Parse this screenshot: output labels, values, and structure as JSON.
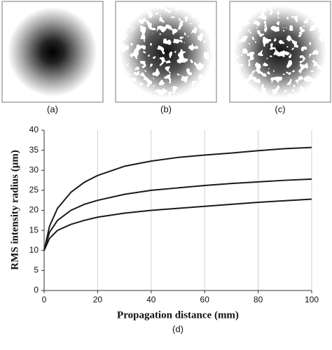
{
  "images": {
    "labels": [
      "(a)",
      "(b)",
      "(c)"
    ]
  },
  "chart_data": {
    "type": "line",
    "caption": "(d)",
    "x_label": "Propagation distance (mm)",
    "y_label": "RMS intensity radius (μm)",
    "x": [
      0,
      2,
      5,
      10,
      15,
      20,
      30,
      40,
      50,
      60,
      70,
      80,
      90,
      100
    ],
    "series": [
      {
        "color": "#1a1a1a",
        "values": [
          10,
          16,
          20.5,
          24.5,
          27,
          28.7,
          31,
          32.3,
          33.2,
          33.8,
          34.3,
          34.9,
          35.4,
          35.7
        ]
      },
      {
        "color": "#1a1a1a",
        "values": [
          10,
          14.5,
          17.5,
          20,
          21.5,
          22.5,
          24,
          25,
          25.6,
          26.2,
          26.7,
          27.1,
          27.5,
          27.8
        ]
      },
      {
        "color": "#1a1a1a",
        "values": [
          10,
          13,
          15,
          16.5,
          17.5,
          18.3,
          19.3,
          20,
          20.5,
          21,
          21.5,
          22,
          22.4,
          22.8
        ]
      }
    ],
    "xlim": [
      0,
      100
    ],
    "xticks": [
      0,
      20,
      40,
      60,
      80,
      100
    ],
    "ylim": [
      0,
      40
    ],
    "yticks": [
      0,
      5,
      10,
      15,
      20,
      25,
      30,
      35,
      40
    ],
    "grid": "x"
  }
}
